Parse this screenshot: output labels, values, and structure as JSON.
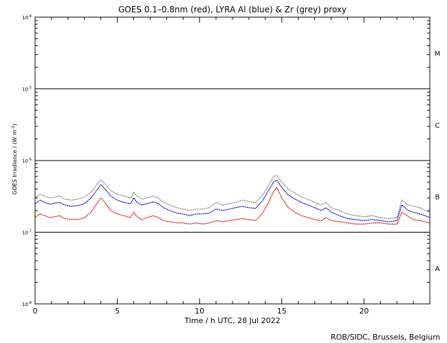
{
  "chart_data": {
    "type": "line",
    "title": "GOES 0.1–0.8nm (red), LYRA Al (blue) & Zr (grey) proxy",
    "xlabel": "Time / h UTC, 28 Jul 2022",
    "ylabel_main": "GOES Irradiance / (W m",
    "ylabel_exp": "-2",
    "ylabel_close": ")",
    "xlim": [
      0,
      24
    ],
    "ylim": [
      1e-08,
      0.0001
    ],
    "yscale": "log",
    "x_ticks": [
      {
        "value": 0,
        "label": "0"
      },
      {
        "value": 5,
        "label": "5"
      },
      {
        "value": 10,
        "label": "10"
      },
      {
        "value": 15,
        "label": "15"
      },
      {
        "value": 20,
        "label": "20"
      }
    ],
    "y_ticks": [
      {
        "value": 0.0001,
        "base": "10",
        "exp": "-4"
      },
      {
        "value": 1e-05,
        "base": "10",
        "exp": "-5"
      },
      {
        "value": 1e-06,
        "base": "10",
        "exp": "-6"
      },
      {
        "value": 1e-07,
        "base": "10",
        "exp": "-7"
      },
      {
        "value": 1e-08,
        "base": "10",
        "exp": "-8"
      }
    ],
    "flare_class_lines": [
      1e-05,
      1e-06,
      1e-07
    ],
    "flare_classes": [
      {
        "label": "M",
        "value": 3.16e-05
      },
      {
        "label": "C",
        "value": 3.16e-06
      },
      {
        "label": "B",
        "value": 3.16e-07
      },
      {
        "label": "A",
        "value": 3.16e-08
      }
    ],
    "series": [
      {
        "color": "#808080",
        "x": [
          0,
          0.3,
          0.6,
          0.9,
          1.2,
          1.5,
          1.8,
          2.2,
          2.6,
          3.0,
          3.4,
          3.8,
          4.0,
          4.3,
          4.6,
          5.0,
          5.4,
          5.8,
          6.0,
          6.2,
          6.5,
          6.8,
          7.2,
          7.5,
          7.8,
          8.2,
          8.6,
          9.0,
          9.4,
          9.8,
          10.2,
          10.6,
          11.0,
          11.4,
          11.8,
          12.2,
          12.6,
          13.0,
          13.4,
          13.8,
          14.2,
          14.5,
          14.7,
          15.0,
          15.4,
          15.8,
          16.2,
          16.6,
          17.0,
          17.4,
          17.7,
          18.0,
          18.5,
          19.0,
          19.5,
          20.0,
          20.5,
          21.0,
          21.5,
          22.0,
          22.3,
          22.7,
          23.0,
          23.4,
          23.7,
          24.0
        ],
        "y": [
          3e-07,
          3.4e-07,
          3.2e-07,
          3e-07,
          3.1e-07,
          3.2e-07,
          2.9e-07,
          2.8e-07,
          2.9e-07,
          3.1e-07,
          3.6e-07,
          4.8e-07,
          5.4e-07,
          4.6e-07,
          3.8e-07,
          3.4e-07,
          3.2e-07,
          3e-07,
          3.6e-07,
          3.2e-07,
          2.9e-07,
          3e-07,
          3.2e-07,
          3e-07,
          2.6e-07,
          2.4e-07,
          2.2e-07,
          2.1e-07,
          2e-07,
          2.1e-07,
          2.1e-07,
          2.2e-07,
          2.6e-07,
          2.4e-07,
          2.5e-07,
          2.6e-07,
          2.8e-07,
          2.7e-07,
          2.6e-07,
          3.2e-07,
          4.5e-07,
          6e-07,
          6.2e-07,
          5e-07,
          4e-07,
          3.5e-07,
          3.1e-07,
          2.9e-07,
          2.6e-07,
          2.4e-07,
          2.6e-07,
          2.2e-07,
          2e-07,
          1.8e-07,
          1.7e-07,
          1.65e-07,
          1.7e-07,
          1.6e-07,
          1.55e-07,
          1.6e-07,
          2.8e-07,
          2.4e-07,
          2.3e-07,
          2.2e-07,
          2e-07,
          1.9e-07
        ]
      },
      {
        "color": "#0000cc",
        "x": [
          0,
          0.3,
          0.6,
          0.9,
          1.2,
          1.5,
          1.8,
          2.2,
          2.6,
          3.0,
          3.4,
          3.8,
          4.0,
          4.3,
          4.6,
          5.0,
          5.4,
          5.8,
          6.0,
          6.2,
          6.5,
          6.8,
          7.2,
          7.5,
          7.8,
          8.2,
          8.6,
          9.0,
          9.4,
          9.8,
          10.2,
          10.6,
          11.0,
          11.4,
          11.8,
          12.2,
          12.6,
          13.0,
          13.4,
          13.8,
          14.2,
          14.5,
          14.7,
          15.0,
          15.4,
          15.8,
          16.2,
          16.6,
          17.0,
          17.4,
          17.7,
          18.0,
          18.5,
          19.0,
          19.5,
          20.0,
          20.5,
          21.0,
          21.5,
          22.0,
          22.3,
          22.7,
          23.0,
          23.4,
          23.7,
          24.0
        ],
        "y": [
          2.5e-07,
          2.8e-07,
          2.6e-07,
          2.45e-07,
          2.55e-07,
          2.6e-07,
          2.4e-07,
          2.3e-07,
          2.35e-07,
          2.5e-07,
          3e-07,
          4e-07,
          4.6e-07,
          3.9e-07,
          3.2e-07,
          2.8e-07,
          2.6e-07,
          2.5e-07,
          3e-07,
          2.6e-07,
          2.4e-07,
          2.5e-07,
          2.65e-07,
          2.5e-07,
          2.2e-07,
          2e-07,
          1.85e-07,
          1.8e-07,
          1.7e-07,
          1.8e-07,
          1.8e-07,
          1.85e-07,
          2.1e-07,
          2e-07,
          2.1e-07,
          2.2e-07,
          2.3e-07,
          2.2e-07,
          2.15e-07,
          2.7e-07,
          3.8e-07,
          5e-07,
          5.3e-07,
          4.2e-07,
          3.3e-07,
          2.9e-07,
          2.6e-07,
          2.4e-07,
          2.2e-07,
          2e-07,
          2.2e-07,
          1.9e-07,
          1.7e-07,
          1.55e-07,
          1.5e-07,
          1.45e-07,
          1.5e-07,
          1.45e-07,
          1.4e-07,
          1.45e-07,
          2.4e-07,
          2e-07,
          1.9e-07,
          1.8e-07,
          1.7e-07,
          1.6e-07
        ]
      },
      {
        "color": "#e00000",
        "x": [
          0,
          0.3,
          0.6,
          0.9,
          1.2,
          1.5,
          1.8,
          2.2,
          2.6,
          3.0,
          3.4,
          3.8,
          4.0,
          4.3,
          4.6,
          5.0,
          5.4,
          5.8,
          6.0,
          6.2,
          6.5,
          6.8,
          7.2,
          7.5,
          7.8,
          8.2,
          8.6,
          9.0,
          9.4,
          9.8,
          10.2,
          10.6,
          11.0,
          11.4,
          11.8,
          12.2,
          12.6,
          13.0,
          13.4,
          13.8,
          14.2,
          14.5,
          14.7,
          15.0,
          15.4,
          15.8,
          16.2,
          16.6,
          17.0,
          17.4,
          17.7,
          18.0,
          18.5,
          19.0,
          19.5,
          20.0,
          20.5,
          21.0,
          21.5,
          22.0,
          22.3,
          22.7,
          23.0,
          23.4,
          23.7,
          24.0
        ],
        "y": [
          1.6e-07,
          1.8e-07,
          1.7e-07,
          1.6e-07,
          1.65e-07,
          1.7e-07,
          1.55e-07,
          1.5e-07,
          1.5e-07,
          1.6e-07,
          1.9e-07,
          2.6e-07,
          3e-07,
          2.5e-07,
          2e-07,
          1.8e-07,
          1.7e-07,
          1.6e-07,
          1.9e-07,
          1.65e-07,
          1.5e-07,
          1.6e-07,
          1.7e-07,
          1.6e-07,
          1.45e-07,
          1.4e-07,
          1.35e-07,
          1.35e-07,
          1.3e-07,
          1.35e-07,
          1.3e-07,
          1.35e-07,
          1.45e-07,
          1.4e-07,
          1.45e-07,
          1.5e-07,
          1.55e-07,
          1.5e-07,
          1.45e-07,
          1.8e-07,
          2.6e-07,
          3.7e-07,
          4.2e-07,
          3e-07,
          2.2e-07,
          1.9e-07,
          1.7e-07,
          1.6e-07,
          1.5e-07,
          1.45e-07,
          1.6e-07,
          1.45e-07,
          1.4e-07,
          1.35e-07,
          1.3e-07,
          1.3e-07,
          1.35e-07,
          1.35e-07,
          1.3e-07,
          1.3e-07,
          1.9e-07,
          1.65e-07,
          1.5e-07,
          1.45e-07,
          1.4e-07,
          1.35e-07
        ]
      }
    ]
  },
  "footer": {
    "credit": "ROB/SIDC, Brussels, Belgium"
  }
}
